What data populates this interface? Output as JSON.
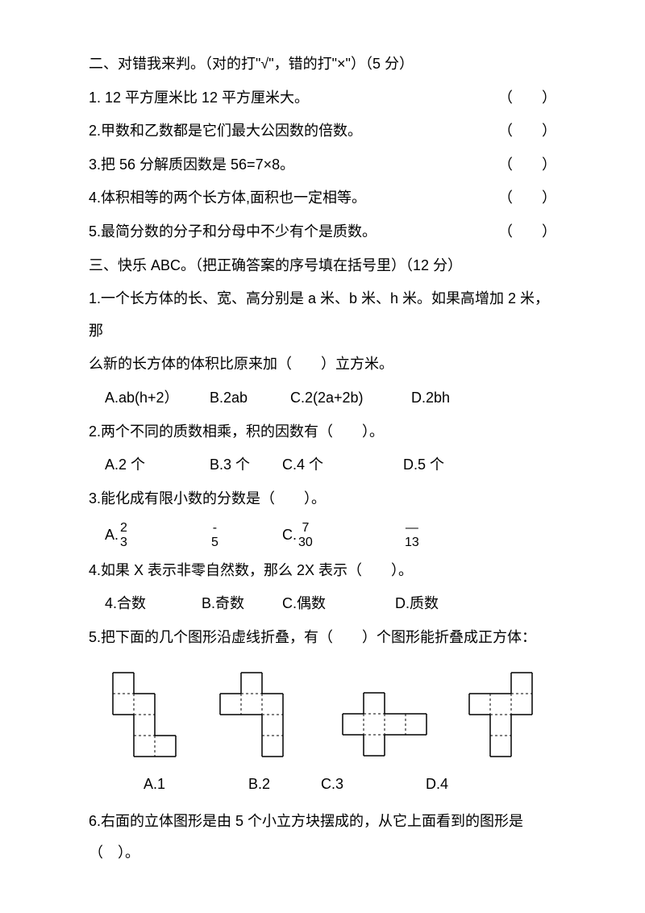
{
  "section2": {
    "title": "二、对错我来判。（对的打\"√\"，错的打\"×\"）（5 分）",
    "q1": {
      "text": "1. 12 平方厘米比 12 平方厘米大。",
      "blank": "（　　）"
    },
    "q2": {
      "text": "2.甲数和乙数都是它们最大公因数的倍数。",
      "blank": "（　　）"
    },
    "q3": {
      "text": "3.把 56 分解质因数是 56=7×8。",
      "blank": "（　　）"
    },
    "q4": {
      "text": "4.体积相等的两个长方体,面积也一定相等。",
      "blank": "（　　）"
    },
    "q5": {
      "text": "5.最简分数的分子和分母中不少有个是质数。",
      "blank": "（　　）"
    }
  },
  "section3": {
    "title": "三、快乐 ABC。（把正确答案的序号填在括号里）（12 分）",
    "q1": {
      "line1": "1.一个长方体的长、宽、高分别是 a 米、b 米、h 米。如果高增加 2 米，那",
      "line2": "么新的长方体的体积比原来加（　　）立方米。",
      "optA": "A.ab(h+2）",
      "optB": "B.2ab",
      "optC": "C.2(2a+2b)",
      "optD": "D.2bh"
    },
    "q2": {
      "text": "2.两个不同的质数相乘，积的因数有（　　）。",
      "optA": "A.2 个",
      "optB": "B.3 个",
      "optC": "C.4 个",
      "optD": "D.5 个"
    },
    "q3": {
      "text": "3.能化成有限小数的分数是（　　）。",
      "A": {
        "label": "A.",
        "num": "2",
        "den": "3"
      },
      "B": {
        "num": "-",
        "den": "5"
      },
      "C": {
        "label": "C.",
        "num": "7",
        "den": "30"
      },
      "D": {
        "num": "—",
        "den": "13"
      }
    },
    "q4": {
      "text": "4.如果 X 表示非零自然数，那么 2X 表示（　　）。",
      "optA": "4.合数",
      "optB": "B.奇数",
      "optC": "C.偶数",
      "optD": "D.质数"
    },
    "q5": {
      "text": "5.把下面的几个图形沿虚线折叠，有（　　）个图形能折叠成正方体：",
      "optA": "A.1",
      "optB": "B.2",
      "optC": "C.3",
      "optD": "D.4",
      "nets": {
        "square_size": 26,
        "stroke": "#000000",
        "dash": "3,3",
        "net1": {
          "cells": [
            [
              1,
              0
            ],
            [
              1,
              1
            ],
            [
              2,
              1
            ],
            [
              2,
              2
            ],
            [
              2,
              3
            ],
            [
              3,
              3
            ]
          ]
        },
        "net2": {
          "cells": [
            [
              1,
              0
            ],
            [
              0,
              1
            ],
            [
              1,
              1
            ],
            [
              2,
              1
            ],
            [
              2,
              2
            ],
            [
              2,
              3
            ]
          ]
        },
        "net3": {
          "cells": [
            [
              1,
              0
            ],
            [
              0,
              1
            ],
            [
              1,
              1
            ],
            [
              2,
              1
            ],
            [
              3,
              1
            ],
            [
              1,
              2
            ]
          ]
        },
        "net4": {
          "cells": [
            [
              2,
              0
            ],
            [
              0,
              1
            ],
            [
              1,
              1
            ],
            [
              2,
              1
            ],
            [
              1,
              2
            ],
            [
              1,
              3
            ]
          ]
        }
      }
    },
    "q6": {
      "text": "6.右面的立体图形是由 5 个小立方块摆成的，从它上面看到的图形是（　）。"
    }
  }
}
